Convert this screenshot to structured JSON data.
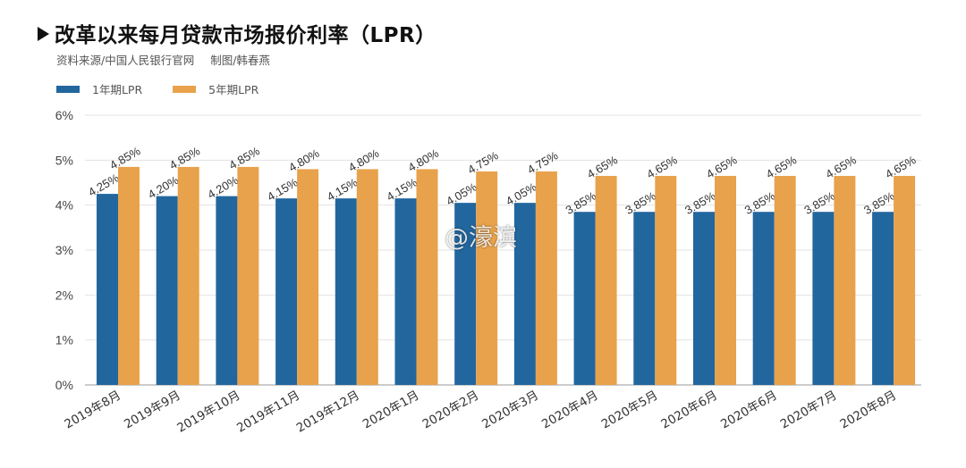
{
  "header": {
    "title": "改革以来每月贷款市场报价利率（LPR）",
    "source": "资料来源/中国人民银行官网",
    "credit": "制图/韩春燕"
  },
  "watermark": "@濠滨",
  "chart_data": {
    "type": "bar",
    "title": "改革以来每月贷款市场报价利率（LPR）",
    "categories": [
      "2019年8月",
      "2019年9月",
      "2019年10月",
      "2019年11月",
      "2019年12月",
      "2020年1月",
      "2020年2月",
      "2020年3月",
      "2020年4月",
      "2020年5月",
      "2020年6月",
      "2020年6月",
      "2020年7月",
      "2020年8月"
    ],
    "series": [
      {
        "name": "1年期LPR",
        "color": "#22669e",
        "values": [
          4.25,
          4.2,
          4.2,
          4.15,
          4.15,
          4.15,
          4.05,
          4.05,
          3.85,
          3.85,
          3.85,
          3.85,
          3.85,
          3.85
        ]
      },
      {
        "name": "5年期LPR",
        "color": "#e8a24b",
        "values": [
          4.85,
          4.85,
          4.85,
          4.8,
          4.8,
          4.8,
          4.75,
          4.75,
          4.65,
          4.65,
          4.65,
          4.65,
          4.65,
          4.65
        ]
      }
    ],
    "yticks": [
      "0%",
      "1%",
      "2%",
      "3%",
      "4%",
      "5%",
      "6%"
    ],
    "ylim": [
      0,
      6
    ],
    "xlabel": "",
    "ylabel": "",
    "grid": true,
    "legend": "top-left"
  }
}
